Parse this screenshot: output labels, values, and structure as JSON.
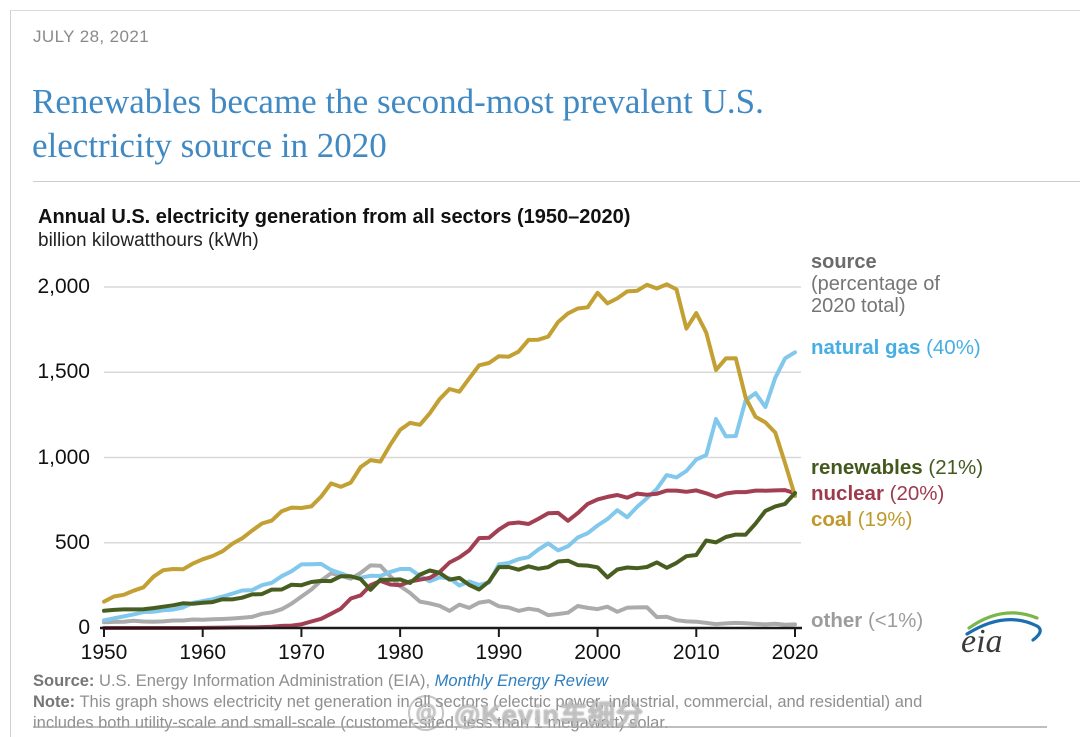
{
  "page": {
    "date": "JULY 28, 2021",
    "title_line1": "Renewables became the second-most prevalent U.S.",
    "title_line2": "electricity source in 2020"
  },
  "footer": {
    "source_label": "Source:",
    "source_text": " U.S. Energy Information Administration (EIA), ",
    "source_link": "Monthly Energy Review",
    "note_label": "Note:",
    "note_line1": " This graph shows electricity net generation in all sectors (electric power, industrial, commercial, and residential) and",
    "note_line2": "includes both utility-scale and small-scale (customer-sited, less than 1 megawatt) solar.",
    "watermark_icon": "@",
    "watermark_text": "@Kevin车细分"
  },
  "logo": {
    "text": "eia"
  },
  "chart_data": {
    "type": "line",
    "title": "Annual U.S. electricity generation from all sectors (1950–2020)",
    "subtitle": "billion kilowatthours (kWh)",
    "xlabel": "",
    "ylabel": "billion kilowatthours (kWh)",
    "x_start": 1950,
    "x_end": 2020,
    "x_ticks": [
      1950,
      1960,
      1970,
      1980,
      1990,
      2000,
      2010,
      2020
    ],
    "y_ticks": [
      0,
      500,
      1000,
      1500,
      2000
    ],
    "y_tick_labels": [
      "0",
      "500",
      "1,000",
      "1,500",
      "2,000"
    ],
    "ylim": [
      0,
      2100
    ],
    "grid": "horizontal",
    "legend_position": "right",
    "legend_header": {
      "line1": "source",
      "line2": "(percentage of",
      "line3": "2020 total)"
    },
    "draw_order": [
      "other",
      "natural_gas",
      "nuclear",
      "coal",
      "renewables"
    ],
    "series": [
      {
        "id": "natural_gas",
        "name": "natural gas",
        "pct": "(40%)",
        "color": "#45aee4",
        "line_color": "#82c8ec",
        "values": [
          45,
          57,
          68,
          80,
          94,
          95,
          104,
          108,
          120,
          147,
          158,
          169,
          184,
          202,
          220,
          222,
          251,
          265,
          304,
          333,
          373,
          374,
          376,
          341,
          320,
          300,
          295,
          306,
          305,
          329,
          346,
          346,
          305,
          274,
          297,
          292,
          249,
          273,
          253,
          267,
          373,
          381,
          404,
          415,
          460,
          496,
          455,
          480,
          531,
          556,
          601,
          639,
          691,
          650,
          710,
          761,
          816,
          897,
          883,
          921,
          988,
          1014,
          1225,
          1124,
          1126,
          1335,
          1378,
          1296,
          1468,
          1582,
          1617
        ]
      },
      {
        "id": "renewables",
        "name": "renewables",
        "pct": "(21%)",
        "color": "#44591d",
        "line_color": "#485e20",
        "values": [
          101,
          106,
          109,
          109,
          110,
          117,
          125,
          133,
          145,
          142,
          148,
          152,
          169,
          168,
          178,
          197,
          199,
          225,
          226,
          254,
          251,
          270,
          276,
          275,
          304,
          303,
          287,
          224,
          283,
          283,
          285,
          264,
          313,
          337,
          324,
          284,
          294,
          253,
          226,
          273,
          357,
          358,
          342,
          362,
          347,
          357,
          390,
          395,
          369,
          366,
          356,
          297,
          343,
          355,
          351,
          358,
          385,
          353,
          382,
          421,
          428,
          513,
          502,
          534,
          548,
          547,
          612,
          687,
          713,
          728,
          792
        ]
      },
      {
        "id": "nuclear",
        "name": "nuclear",
        "pct": "(20%)",
        "color": "#9e3a4e",
        "line_color": "#a23f52",
        "values": [
          0,
          0,
          0,
          0,
          0,
          0,
          0,
          0.1,
          0.2,
          0.2,
          0.5,
          1.7,
          2.3,
          3.2,
          3.3,
          3.7,
          5.5,
          7.7,
          12.5,
          13.9,
          21.8,
          38,
          54,
          83,
          114,
          173,
          191,
          251,
          276,
          255,
          251,
          273,
          283,
          294,
          328,
          384,
          414,
          455,
          527,
          529,
          577,
          613,
          619,
          610,
          640,
          673,
          675,
          629,
          674,
          728,
          754,
          769,
          780,
          764,
          788,
          782,
          787,
          806,
          806,
          799,
          807,
          790,
          769,
          789,
          797,
          797,
          806,
          805,
          807,
          809,
          790
        ]
      },
      {
        "id": "coal",
        "name": "coal",
        "pct": "(19%)",
        "color": "#bf992a",
        "line_color": "#c3a033",
        "values": [
          155,
          185,
          195,
          219,
          239,
          301,
          339,
          346,
          344,
          378,
          403,
          422,
          450,
          494,
          526,
          571,
          613,
          630,
          685,
          706,
          704,
          713,
          771,
          848,
          828,
          853,
          944,
          985,
          976,
          1075,
          1162,
          1203,
          1192,
          1259,
          1342,
          1402,
          1386,
          1464,
          1541,
          1554,
          1594,
          1591,
          1621,
          1690,
          1691,
          1709,
          1795,
          1845,
          1874,
          1881,
          1966,
          1904,
          1933,
          1974,
          1978,
          2013,
          1991,
          2016,
          1986,
          1756,
          1847,
          1733,
          1514,
          1581,
          1582,
          1352,
          1239,
          1206,
          1146,
          966,
          774
        ]
      },
      {
        "id": "other",
        "name": "other",
        "pct": "(<1%)",
        "color": "#9c9c9c",
        "line_color": "#ababab",
        "values": [
          34,
          36,
          37,
          42,
          38,
          37,
          39,
          44,
          44,
          50,
          48,
          51,
          53,
          56,
          60,
          65,
          83,
          92,
          110,
          143,
          184,
          225,
          278,
          321,
          307,
          289,
          323,
          367,
          365,
          304,
          246,
          206,
          155,
          144,
          130,
          100,
          137,
          118,
          149,
          158,
          127,
          120,
          100,
          113,
          105,
          75,
          82,
          90,
          129,
          118,
          111,
          125,
          95,
          119,
          121,
          122,
          64,
          66,
          46,
          39,
          37,
          30,
          23,
          27,
          30,
          28,
          24,
          21,
          25,
          19,
          21
        ]
      }
    ]
  }
}
